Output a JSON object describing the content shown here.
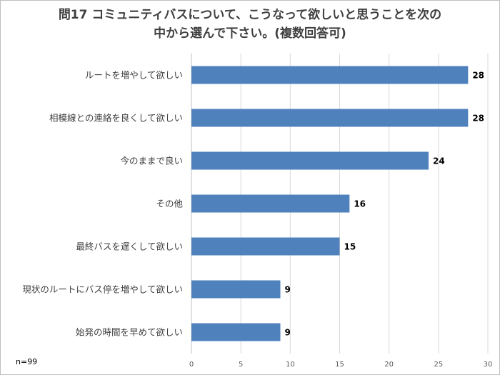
{
  "chart_data": {
    "type": "bar",
    "orientation": "horizontal",
    "title": "問17 コミュニティバスについて、こうなって欲しいと思うことを次の中から選んで下さい。(複数回答可)",
    "title_lines": [
      "問17 コミュニティバスについて、こうなって欲しいと思うことを次の",
      "中から選んで下さい。(複数回答可)"
    ],
    "categories": [
      "ルートを増やして欲しい",
      "相模線との連絡を良くして欲しい",
      "今のままで良い",
      "その他",
      "最終バスを遅くして欲しい",
      "現状のルートにバス停を増やして欲しい",
      "始発の時間を早めて欲しい"
    ],
    "values": [
      28,
      28,
      24,
      16,
      15,
      9,
      9
    ],
    "xlim": [
      0,
      30
    ],
    "xticks": [
      0,
      5,
      10,
      15,
      20,
      25,
      30
    ],
    "grid": true,
    "legend": "none",
    "colors": {
      "bar": "#4f81bd",
      "grid": "#d9d9d9"
    }
  },
  "note": "n=99"
}
